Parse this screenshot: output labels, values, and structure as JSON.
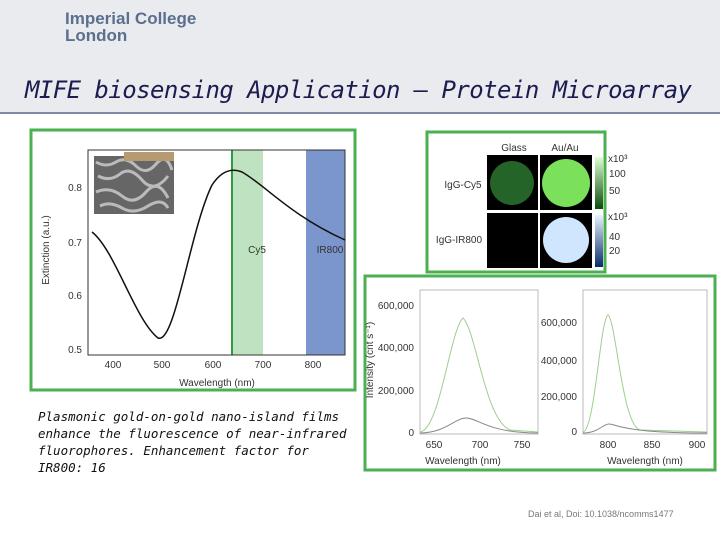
{
  "header": {
    "logo": [
      "Imperial College",
      "London"
    ]
  },
  "title": "MIFE biosensing Application – Protein Microarray",
  "figure_a": {
    "x_label": "Wavelength (nm)",
    "y_label": "Extinction (a.u.)",
    "x_ticks": [
      "400",
      "500",
      "600",
      "700",
      "800"
    ],
    "y_ticks": [
      "0.8",
      "0.7",
      "0.6",
      "0.5"
    ],
    "bands": [
      "Cy5",
      "IR800"
    ]
  },
  "figure_b": {
    "columns": [
      "Glass",
      "Au/Au"
    ],
    "rows": [
      "IgG-Cy5",
      "IgG-IR800"
    ],
    "scales": [
      {
        "unit": "x10³",
        "ticks": [
          "100",
          "50"
        ]
      },
      {
        "unit": "x10³",
        "ticks": [
          "40",
          "20"
        ]
      }
    ]
  },
  "figure_c": {
    "y_label": "Intensity (cnt s⁻¹)",
    "panels": [
      {
        "y_ticks": [
          "600,000",
          "400,000",
          "200,000",
          "0"
        ],
        "x_ticks": [
          "650",
          "700",
          "750"
        ],
        "x_label": "Wavelength (nm)"
      },
      {
        "y_ticks": [
          "600,000",
          "400,000",
          "200,000",
          "0"
        ],
        "x_ticks": [
          "800",
          "850",
          "900"
        ],
        "x_label": "Wavelength (nm)"
      }
    ]
  },
  "caption": [
    "Plasmonic gold-on-gold nano-island films",
    "enhance the fluorescence of near-infrared",
    "fluorophores.  Enhancement factor for",
    "IR800: 16"
  ],
  "citation": "Dai et al, Doi: 10.1038/ncomms1477"
}
